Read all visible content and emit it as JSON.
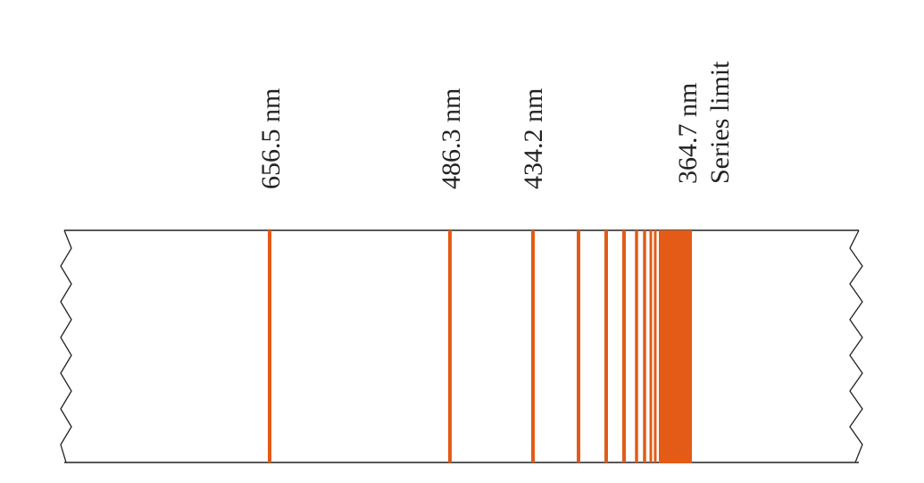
{
  "spectrum": {
    "unit": "nm",
    "line_color": "#e35b17",
    "labels": [
      {
        "wavelength": "656.5 nm"
      },
      {
        "wavelength": "486.3 nm"
      },
      {
        "wavelength": "434.2 nm"
      },
      {
        "wavelength": "364.7 nm",
        "note": "Series limit"
      }
    ]
  }
}
